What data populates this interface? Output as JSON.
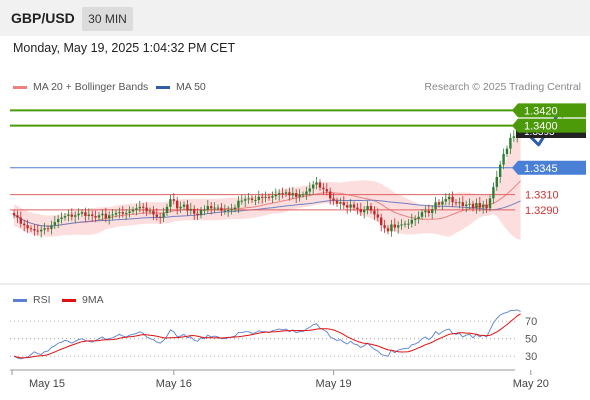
{
  "header": {
    "symbol": "GBP/USD",
    "timeframe": "30 MIN"
  },
  "datetime": "Monday, May 19, 2025 1:04:32 PM CET",
  "legend": {
    "bollinger_label": "MA 20 + Bollinger Bands",
    "ma50_label": "MA 50",
    "rsi_label": "RSI",
    "rsi_ma_label": "9MA"
  },
  "attribution": "Research © 2025 Trading Central",
  "colors": {
    "up": "#2e7d32",
    "down": "#c62828",
    "ma20": "#f08080",
    "band_fill": "#fdd8d8",
    "ma50": "#7080c0",
    "pivot": "#4a7fd6",
    "resistance": "#4c9a0a",
    "support": "#e06060",
    "rsi": "#5b7fd6",
    "rsi_ma": "#e01010",
    "arrow": "#2f5ea8",
    "last_price_bg": "#222222"
  },
  "chart_data": [
    {
      "type": "candlestick",
      "x_ticks": [
        "May 15",
        "May 16",
        "May 19",
        "May 20"
      ],
      "ylim": [
        1.3205,
        1.344
      ],
      "last_price": 1.3393,
      "candles_per_day": 47,
      "levels": [
        {
          "value": 1.342,
          "label": "1.3420",
          "kind": "resistance"
        },
        {
          "value": 1.34,
          "label": "1.3400",
          "kind": "resistance"
        },
        {
          "value": 1.3345,
          "label": "1.3345",
          "kind": "pivot"
        },
        {
          "value": 1.331,
          "label": "1.3310",
          "kind": "support"
        },
        {
          "value": 1.329,
          "label": "1.3290",
          "kind": "support"
        }
      ],
      "forecast_path": [
        {
          "x": "May 20 00:30",
          "y": 1.3393
        },
        {
          "x": "May 20 02:30",
          "y": 1.3375
        },
        {
          "x": "May 20 05:30",
          "y": 1.342
        }
      ],
      "closes": [
        1.3283,
        1.328,
        1.3272,
        1.327,
        1.3266,
        1.3265,
        1.3263,
        1.3262,
        1.3264,
        1.3266,
        1.3265,
        1.327,
        1.3274,
        1.3278,
        1.328,
        1.3282,
        1.3284,
        1.3281,
        1.3283,
        1.3285,
        1.3287,
        1.3282,
        1.3284,
        1.3282,
        1.328,
        1.3283,
        1.3285,
        1.3279,
        1.3283,
        1.3284,
        1.3286,
        1.3287,
        1.3285,
        1.3286,
        1.3288,
        1.329,
        1.3292,
        1.3294,
        1.3293,
        1.3288,
        1.3289,
        1.3284,
        1.3281,
        1.328,
        1.3286,
        1.3294,
        1.3304,
        1.3302,
        1.3292,
        1.3294,
        1.3297,
        1.3289,
        1.3291,
        1.3285,
        1.3283,
        1.329,
        1.329,
        1.3295,
        1.3292,
        1.3293,
        1.3293,
        1.3289,
        1.3289,
        1.329,
        1.3291,
        1.3293,
        1.3302,
        1.3302,
        1.3304,
        1.3305,
        1.3303,
        1.3303,
        1.3307,
        1.3306,
        1.3307,
        1.3306,
        1.3308,
        1.331,
        1.3312,
        1.3311,
        1.3313,
        1.3309,
        1.3312,
        1.3307,
        1.331,
        1.331,
        1.3314,
        1.3318,
        1.3323,
        1.3326,
        1.3319,
        1.3317,
        1.3314,
        1.3305,
        1.3302,
        1.3298,
        1.33,
        1.3296,
        1.3293,
        1.3297,
        1.3293,
        1.3291,
        1.3287,
        1.329,
        1.3295,
        1.3289,
        1.3284,
        1.328,
        1.327,
        1.3266,
        1.3262,
        1.3271,
        1.3267,
        1.327,
        1.3271,
        1.3272,
        1.3272,
        1.3277,
        1.3278,
        1.3281,
        1.3287,
        1.3289,
        1.3286,
        1.3291,
        1.33,
        1.3297,
        1.3301,
        1.3304,
        1.3307,
        1.33,
        1.3299,
        1.33,
        1.3295,
        1.3297,
        1.3298,
        1.3292,
        1.3299,
        1.3293,
        1.3297,
        1.3292,
        1.3305,
        1.332,
        1.3333,
        1.3349,
        1.3363,
        1.337,
        1.3384,
        1.3386,
        1.3395,
        1.3393
      ]
    },
    {
      "type": "line",
      "title": "RSI",
      "yticks": [
        30,
        50,
        70
      ],
      "ylim": [
        20,
        85
      ],
      "series": [
        {
          "name": "RSI",
          "values": [
            30,
            28,
            27,
            28,
            29,
            32,
            35,
            33,
            32,
            35,
            36,
            40,
            42,
            45,
            46,
            48,
            47,
            45,
            47,
            49,
            50,
            48,
            47,
            46,
            48,
            50,
            52,
            49,
            50,
            51,
            53,
            55,
            53,
            52,
            54,
            55,
            56,
            58,
            56,
            52,
            50,
            49,
            46,
            45,
            48,
            53,
            60,
            58,
            52,
            53,
            55,
            51,
            52,
            48,
            47,
            51,
            50,
            54,
            52,
            53,
            52,
            50,
            50,
            51,
            52,
            53,
            57,
            57,
            58,
            58,
            56,
            57,
            59,
            58,
            58,
            57,
            59,
            60,
            61,
            60,
            61,
            58,
            60,
            57,
            58,
            58,
            61,
            63,
            66,
            67,
            62,
            60,
            58,
            52,
            50,
            48,
            49,
            46,
            44,
            47,
            44,
            43,
            40,
            42,
            45,
            41,
            38,
            36,
            32,
            31,
            30,
            37,
            34,
            37,
            38,
            39,
            39,
            43,
            44,
            46,
            50,
            52,
            49,
            52,
            58,
            55,
            58,
            60,
            61,
            56,
            55,
            56,
            52,
            54,
            55,
            51,
            55,
            52,
            54,
            52,
            60,
            68,
            73,
            77,
            79,
            80,
            82,
            82,
            83,
            81
          ]
        }
      ]
    }
  ]
}
